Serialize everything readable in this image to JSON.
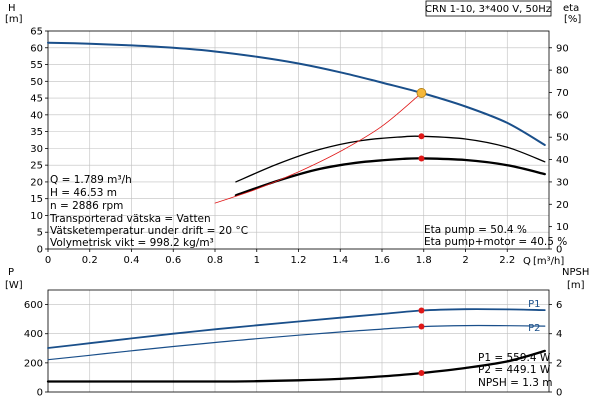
{
  "colors": {
    "blue": "#1a4f8a",
    "black": "#000000",
    "red": "#e01818",
    "orange_marker": "#f5b83a",
    "grid": "#bfbfbf"
  },
  "header": {
    "model_label": "CRN 1-10, 3*400 V, 50Hz"
  },
  "info_left": {
    "lines": [
      "Q = 1.789 m³/h",
      "H = 46.53 m",
      "n = 2886 rpm",
      "Transporterad vätska = Vatten",
      "Vätsketemperatur under drift = 20 °C",
      "Volymetrisk vikt = 998.2 kg/m³"
    ]
  },
  "info_eta": {
    "lines": [
      "Eta pump = 50.4 %",
      "Eta pump+motor = 40.5 %"
    ]
  },
  "info_power": {
    "lines": [
      "P1 = 559.4 W",
      "P2 = 449.1 W",
      "NPSH = 1.3 m"
    ]
  },
  "chart_data": [
    {
      "type": "line",
      "id": "head_efficiency",
      "axes": {
        "left": {
          "label": "H",
          "unit": "[m]",
          "ylim": [
            0,
            65
          ],
          "ticks": [
            0,
            5,
            10,
            15,
            20,
            25,
            30,
            35,
            40,
            45,
            50,
            55,
            60,
            65
          ]
        },
        "right": {
          "label": "eta",
          "unit": "[%]",
          "ylim": [
            0,
            97.5
          ],
          "ticks": [
            0,
            10,
            20,
            30,
            40,
            50,
            60,
            70,
            80,
            90
          ]
        },
        "x": {
          "label": "Q",
          "unit": "[m³/h]",
          "xlim": [
            0,
            2.4
          ],
          "ticks": [
            0,
            0.2,
            0.4,
            0.6,
            0.8,
            1,
            1.2,
            1.4,
            1.6,
            1.8,
            2,
            2.2
          ]
        }
      },
      "grid": true,
      "series": [
        {
          "name": "H",
          "axis": "left",
          "color": "#1a4f8a",
          "width": 2,
          "x": [
            0,
            0.2,
            0.4,
            0.6,
            0.8,
            1.0,
            1.2,
            1.4,
            1.6,
            1.789,
            2.0,
            2.2,
            2.38
          ],
          "y": [
            61.5,
            61.2,
            60.7,
            60.0,
            58.9,
            57.3,
            55.3,
            52.7,
            49.6,
            46.53,
            42.5,
            37.6,
            31.0
          ]
        },
        {
          "name": "eta pump",
          "axis": "right",
          "color": "#000000",
          "width": 1.3,
          "x": [
            0.9,
            1.1,
            1.3,
            1.5,
            1.7,
            1.789,
            2.0,
            2.2,
            2.38
          ],
          "y": [
            30,
            38,
            44.5,
            48.5,
            50.2,
            50.4,
            49.2,
            45.5,
            39
          ]
        },
        {
          "name": "eta pump+motor",
          "axis": "right",
          "color": "#000000",
          "width": 2.3,
          "x": [
            0.9,
            1.1,
            1.3,
            1.5,
            1.7,
            1.789,
            2.0,
            2.2,
            2.38
          ],
          "y": [
            24,
            30.5,
            35.8,
            38.8,
            40.3,
            40.5,
            39.8,
            37.5,
            33.5
          ]
        },
        {
          "name": "system",
          "axis": "left",
          "color": "#e01818",
          "width": 0.8,
          "x": [
            0.8,
            1.0,
            1.2,
            1.4,
            1.6,
            1.789
          ],
          "y": [
            13.7,
            17.9,
            23.0,
            29.1,
            36.6,
            46.53
          ]
        }
      ],
      "markers": [
        {
          "x": 1.789,
          "y": 46.53,
          "axis": "left",
          "style": "orange"
        },
        {
          "x": 1.789,
          "y": 50.4,
          "axis": "right",
          "style": "red"
        },
        {
          "x": 1.789,
          "y": 40.5,
          "axis": "right",
          "style": "red"
        }
      ]
    },
    {
      "type": "line",
      "id": "power_npsh",
      "axes": {
        "left": {
          "label": "P",
          "unit": "[W]",
          "ylim": [
            0,
            700
          ],
          "ticks": [
            0,
            200,
            400,
            600
          ]
        },
        "right": {
          "label": "NPSH",
          "unit": "[m]",
          "ylim": [
            0,
            7
          ],
          "ticks": [
            0,
            2,
            4,
            6
          ]
        },
        "x": {
          "xlim": [
            0,
            2.4
          ]
        }
      },
      "grid": true,
      "series": [
        {
          "name": "P1",
          "axis": "left",
          "color": "#1a4f8a",
          "width": 1.8,
          "x": [
            0,
            0.2,
            0.4,
            0.6,
            0.8,
            1.0,
            1.2,
            1.4,
            1.6,
            1.789,
            2.0,
            2.2,
            2.38
          ],
          "y": [
            302,
            335,
            368,
            400,
            430,
            458,
            484,
            510,
            535,
            559.4,
            568,
            567,
            562
          ]
        },
        {
          "name": "P2",
          "axis": "left",
          "color": "#1a4f8a",
          "width": 1.2,
          "x": [
            0,
            0.2,
            0.4,
            0.6,
            0.8,
            1.0,
            1.2,
            1.4,
            1.6,
            1.789,
            2.0,
            2.2,
            2.38
          ],
          "y": [
            222,
            252,
            283,
            312,
            340,
            366,
            390,
            412,
            432,
            449.1,
            456,
            455,
            452
          ]
        },
        {
          "name": "NPSH",
          "axis": "right",
          "color": "#000000",
          "width": 2.3,
          "x": [
            0,
            0.4,
            0.8,
            1.0,
            1.2,
            1.4,
            1.6,
            1.789,
            2.0,
            2.2,
            2.38
          ],
          "y": [
            0.72,
            0.72,
            0.72,
            0.74,
            0.8,
            0.9,
            1.07,
            1.3,
            1.65,
            2.1,
            2.82
          ]
        }
      ],
      "series_labels": [
        {
          "name": "P1",
          "text": "P1",
          "at": [
            2.3,
            583
          ]
        },
        {
          "name": "P2",
          "text": "P2",
          "at": [
            2.3,
            420
          ]
        }
      ],
      "markers": [
        {
          "x": 1.789,
          "y": 559.4,
          "axis": "left",
          "style": "red"
        },
        {
          "x": 1.789,
          "y": 449.1,
          "axis": "left",
          "style": "red"
        },
        {
          "x": 1.789,
          "y": 1.3,
          "axis": "right",
          "style": "red"
        }
      ]
    }
  ]
}
